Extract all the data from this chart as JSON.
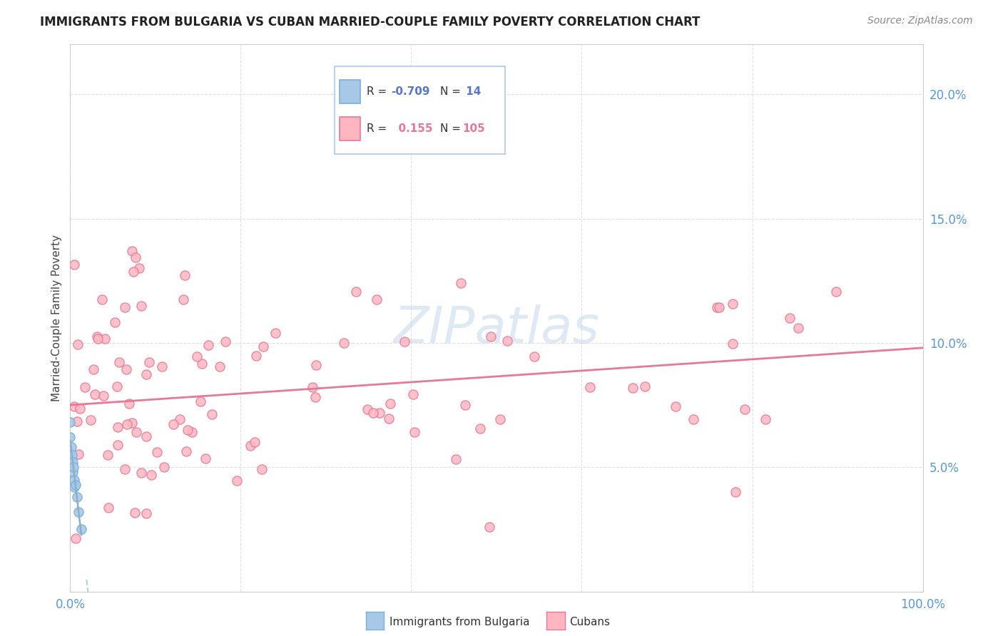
{
  "title": "IMMIGRANTS FROM BULGARIA VS CUBAN MARRIED-COUPLE FAMILY POVERTY CORRELATION CHART",
  "source": "Source: ZipAtlas.com",
  "ylabel": "Married-Couple Family Poverty",
  "xlim": [
    0,
    1.0
  ],
  "ylim": [
    0.0,
    0.22
  ],
  "color_bulgaria": "#A8C8E8",
  "color_bulgaria_edge": "#7BAFD4",
  "color_cuba": "#FFB6C1",
  "color_cuba_edge": "#E87898",
  "color_bulgaria_line": "#8AAFC8",
  "color_cuba_line": "#E87898",
  "color_tick": "#5599DD",
  "bg_color": "#FFFFFF",
  "grid_color": "#DDDDDD",
  "watermark_color": "#C5D8EA",
  "note_color": "#999999"
}
